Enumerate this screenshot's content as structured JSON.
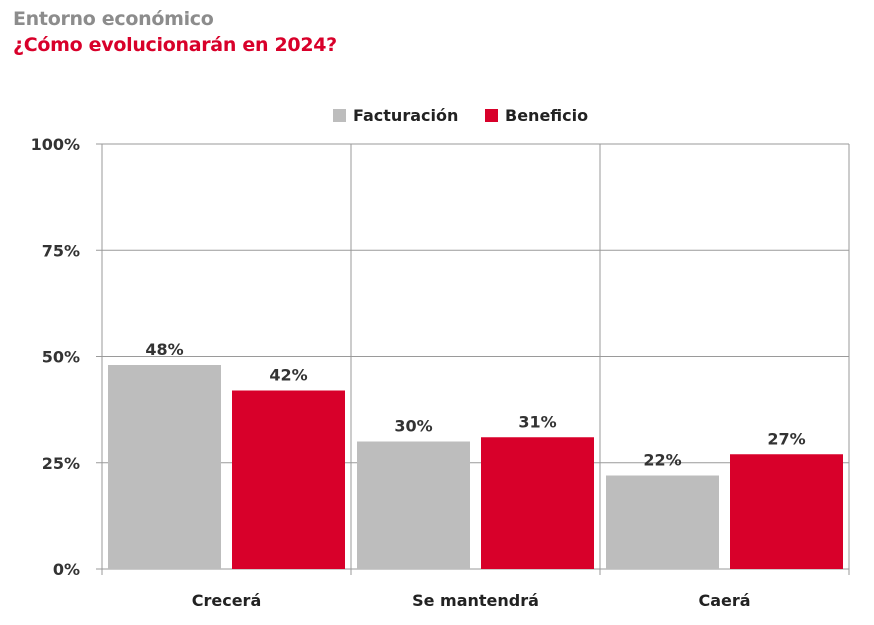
{
  "header": {
    "kicker": "Entorno económico",
    "title": "¿Cómo evolucionarán en 2024?"
  },
  "colors": {
    "facturacion": "#bdbdbd",
    "beneficio": "#d8002a",
    "kicker": "#8c8c8c",
    "title": "#d8002a",
    "grid": "#9a9a9a",
    "text": "#333333"
  },
  "chart_data": {
    "type": "bar",
    "categories": [
      "Crecerá",
      "Se mantendrá",
      "Caerá"
    ],
    "series": [
      {
        "name": "Facturación",
        "values": [
          48,
          30,
          22
        ],
        "labels": [
          "48%",
          "30%",
          "22%"
        ]
      },
      {
        "name": "Beneficio",
        "values": [
          42,
          31,
          27
        ],
        "labels": [
          "42%",
          "31%",
          "27%"
        ]
      }
    ],
    "y_ticks": [
      0,
      25,
      50,
      75,
      100
    ],
    "y_tick_labels": [
      "0%",
      "25%",
      "50%",
      "75%",
      "100%"
    ],
    "ylim": [
      0,
      100
    ],
    "grid": true,
    "legend_position": "top-center"
  }
}
